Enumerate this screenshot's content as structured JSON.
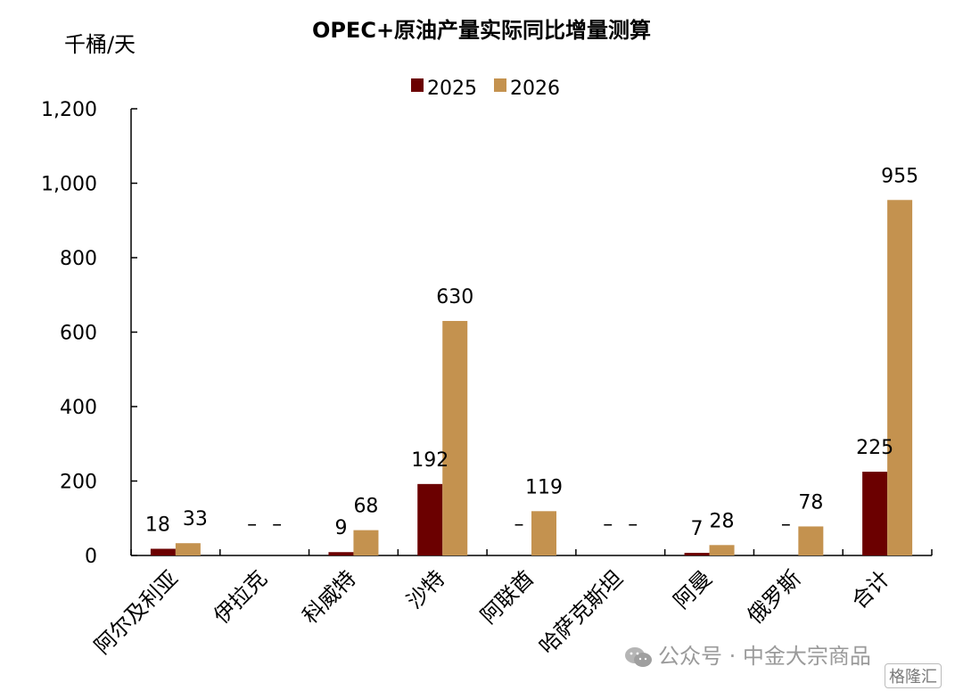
{
  "chart_data": {
    "type": "bar",
    "title": "OPEC+原油产量实际同比增量测算",
    "unit_label": "千桶/天",
    "categories": [
      "阿尔及利亚",
      "伊拉克",
      "科威特",
      "沙特",
      "阿联酋",
      "哈萨克斯坦",
      "阿曼",
      "俄罗斯",
      "合计"
    ],
    "series": [
      {
        "name": "2025",
        "color": "#6b0000",
        "values": [
          18,
          null,
          9,
          192,
          null,
          null,
          7,
          null,
          225
        ]
      },
      {
        "name": "2026",
        "color": "#c4924f",
        "values": [
          33,
          null,
          68,
          630,
          119,
          null,
          28,
          78,
          955
        ]
      }
    ],
    "ylim": [
      0,
      1200
    ],
    "yticks": [
      0,
      200,
      400,
      600,
      800,
      1000,
      1200
    ],
    "ytick_labels": [
      "0",
      "200",
      "400",
      "600",
      "800",
      "1,000",
      "1,200"
    ],
    "missing_marker": "–",
    "legend_position": "top"
  },
  "watermark": {
    "text": "公众号 · 中金大宗商品",
    "badge": "格隆汇"
  }
}
